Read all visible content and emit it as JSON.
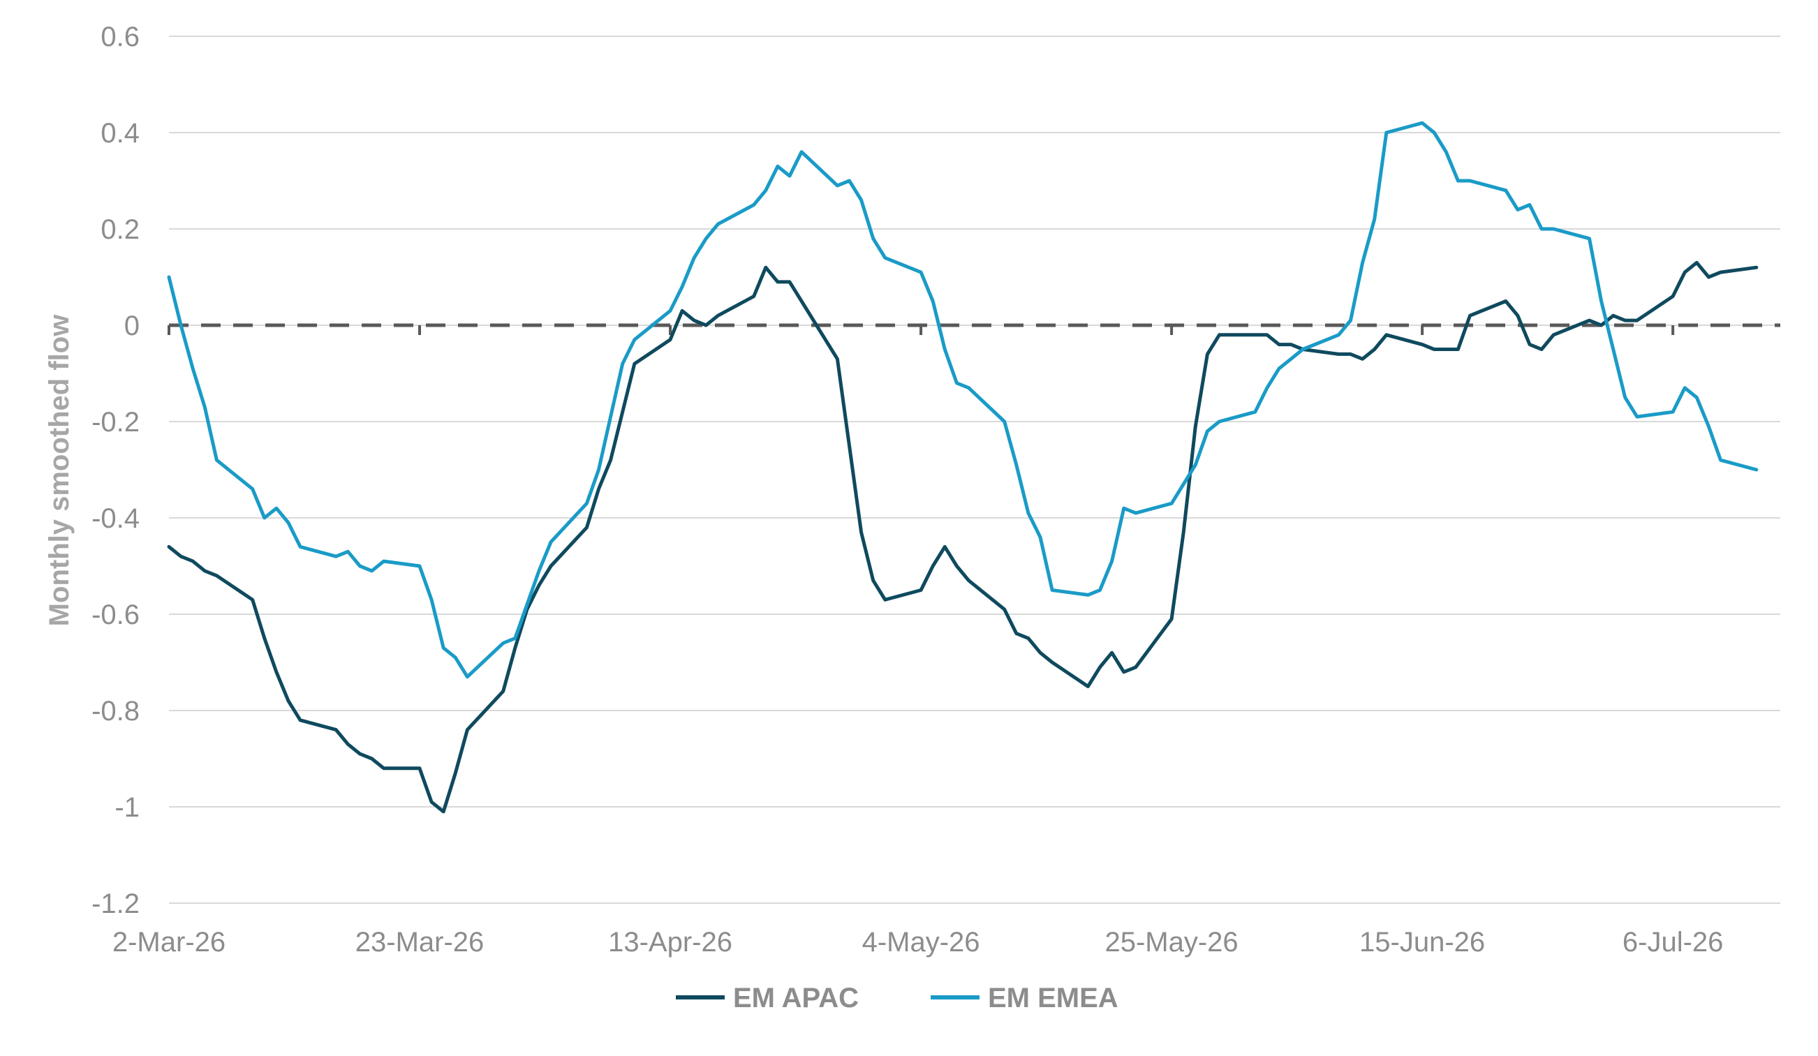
{
  "chart_data": {
    "type": "line",
    "title": "",
    "xlabel": "",
    "ylabel": "Monthly smoothed flow",
    "ylim": [
      -1.2,
      0.6
    ],
    "yticks": [
      0.6,
      0.4,
      0.2,
      0,
      -0.2,
      -0.4,
      -0.6,
      -0.8,
      -1,
      -1.2
    ],
    "ytick_labels": [
      "0.6",
      "0.4",
      "0.2",
      "0",
      "-0.2",
      "-0.4",
      "-0.6",
      "-0.8",
      "-1",
      "-1.2"
    ],
    "xlim": [
      "2026-03-02",
      "2026-07-15"
    ],
    "xticks": [
      "2026-03-02",
      "2026-03-23",
      "2026-04-13",
      "2026-05-04",
      "2026-05-25",
      "2026-06-15",
      "2026-07-06"
    ],
    "xtick_labels": [
      "2-Mar-26",
      "23-Mar-26",
      "13-Apr-26",
      "4-May-26",
      "25-May-26",
      "15-Jun-26",
      "6-Jul-26"
    ],
    "grid": true,
    "legend_position": "bottom",
    "reference_line": {
      "y": 0,
      "style": "dashed",
      "color": "#595959"
    },
    "series": [
      {
        "name": "EM APAC",
        "color": "#0f4a5e",
        "points": [
          [
            "2026-03-02",
            -0.46
          ],
          [
            "2026-03-03",
            -0.48
          ],
          [
            "2026-03-04",
            -0.49
          ],
          [
            "2026-03-05",
            -0.51
          ],
          [
            "2026-03-06",
            -0.52
          ],
          [
            "2026-03-09",
            -0.57
          ],
          [
            "2026-03-10",
            -0.65
          ],
          [
            "2026-03-11",
            -0.72
          ],
          [
            "2026-03-12",
            -0.78
          ],
          [
            "2026-03-13",
            -0.82
          ],
          [
            "2026-03-16",
            -0.84
          ],
          [
            "2026-03-17",
            -0.87
          ],
          [
            "2026-03-18",
            -0.89
          ],
          [
            "2026-03-19",
            -0.9
          ],
          [
            "2026-03-20",
            -0.92
          ],
          [
            "2026-03-23",
            -0.92
          ],
          [
            "2026-03-24",
            -0.99
          ],
          [
            "2026-03-25",
            -1.01
          ],
          [
            "2026-03-26",
            -0.93
          ],
          [
            "2026-03-27",
            -0.84
          ],
          [
            "2026-03-30",
            -0.76
          ],
          [
            "2026-03-31",
            -0.67
          ],
          [
            "2026-04-01",
            -0.59
          ],
          [
            "2026-04-02",
            -0.54
          ],
          [
            "2026-04-03",
            -0.5
          ],
          [
            "2026-04-06",
            -0.42
          ],
          [
            "2026-04-07",
            -0.34
          ],
          [
            "2026-04-08",
            -0.28
          ],
          [
            "2026-04-09",
            -0.18
          ],
          [
            "2026-04-10",
            -0.08
          ],
          [
            "2026-04-13",
            -0.03
          ],
          [
            "2026-04-14",
            0.03
          ],
          [
            "2026-04-15",
            0.01
          ],
          [
            "2026-04-16",
            0.0
          ],
          [
            "2026-04-17",
            0.02
          ],
          [
            "2026-04-20",
            0.06
          ],
          [
            "2026-04-21",
            0.12
          ],
          [
            "2026-04-22",
            0.09
          ],
          [
            "2026-04-23",
            0.09
          ],
          [
            "2026-04-24",
            0.05
          ],
          [
            "2026-04-27",
            -0.07
          ],
          [
            "2026-04-28",
            -0.25
          ],
          [
            "2026-04-29",
            -0.43
          ],
          [
            "2026-04-30",
            -0.53
          ],
          [
            "2026-05-01",
            -0.57
          ],
          [
            "2026-05-04",
            -0.55
          ],
          [
            "2026-05-05",
            -0.5
          ],
          [
            "2026-05-06",
            -0.46
          ],
          [
            "2026-05-07",
            -0.5
          ],
          [
            "2026-05-08",
            -0.53
          ],
          [
            "2026-05-11",
            -0.59
          ],
          [
            "2026-05-12",
            -0.64
          ],
          [
            "2026-05-13",
            -0.65
          ],
          [
            "2026-05-14",
            -0.68
          ],
          [
            "2026-05-15",
            -0.7
          ],
          [
            "2026-05-18",
            -0.75
          ],
          [
            "2026-05-19",
            -0.71
          ],
          [
            "2026-05-20",
            -0.68
          ],
          [
            "2026-05-21",
            -0.72
          ],
          [
            "2026-05-22",
            -0.71
          ],
          [
            "2026-05-25",
            -0.61
          ],
          [
            "2026-05-26",
            -0.43
          ],
          [
            "2026-05-27",
            -0.21
          ],
          [
            "2026-05-28",
            -0.06
          ],
          [
            "2026-05-29",
            -0.02
          ],
          [
            "2026-06-01",
            -0.02
          ],
          [
            "2026-06-02",
            -0.02
          ],
          [
            "2026-06-03",
            -0.04
          ],
          [
            "2026-06-04",
            -0.04
          ],
          [
            "2026-06-05",
            -0.05
          ],
          [
            "2026-06-08",
            -0.06
          ],
          [
            "2026-06-09",
            -0.06
          ],
          [
            "2026-06-10",
            -0.07
          ],
          [
            "2026-06-11",
            -0.05
          ],
          [
            "2026-06-12",
            -0.02
          ],
          [
            "2026-06-15",
            -0.04
          ],
          [
            "2026-06-16",
            -0.05
          ],
          [
            "2026-06-17",
            -0.05
          ],
          [
            "2026-06-18",
            -0.05
          ],
          [
            "2026-06-19",
            0.02
          ],
          [
            "2026-06-22",
            0.05
          ],
          [
            "2026-06-23",
            0.02
          ],
          [
            "2026-06-24",
            -0.04
          ],
          [
            "2026-06-25",
            -0.05
          ],
          [
            "2026-06-26",
            -0.02
          ],
          [
            "2026-06-29",
            0.01
          ],
          [
            "2026-06-30",
            0.0
          ],
          [
            "2026-07-01",
            0.02
          ],
          [
            "2026-07-02",
            0.01
          ],
          [
            "2026-07-03",
            0.01
          ],
          [
            "2026-07-06",
            0.06
          ],
          [
            "2026-07-07",
            0.11
          ],
          [
            "2026-07-08",
            0.13
          ],
          [
            "2026-07-09",
            0.1
          ],
          [
            "2026-07-10",
            0.11
          ],
          [
            "2026-07-13",
            0.12
          ]
        ]
      },
      {
        "name": "EM EMEA",
        "color": "#1a9bc7",
        "points": [
          [
            "2026-03-02",
            0.1
          ],
          [
            "2026-03-03",
            0.0
          ],
          [
            "2026-03-04",
            -0.09
          ],
          [
            "2026-03-05",
            -0.17
          ],
          [
            "2026-03-06",
            -0.28
          ],
          [
            "2026-03-09",
            -0.34
          ],
          [
            "2026-03-10",
            -0.4
          ],
          [
            "2026-03-11",
            -0.38
          ],
          [
            "2026-03-12",
            -0.41
          ],
          [
            "2026-03-13",
            -0.46
          ],
          [
            "2026-03-16",
            -0.48
          ],
          [
            "2026-03-17",
            -0.47
          ],
          [
            "2026-03-18",
            -0.5
          ],
          [
            "2026-03-19",
            -0.51
          ],
          [
            "2026-03-20",
            -0.49
          ],
          [
            "2026-03-23",
            -0.5
          ],
          [
            "2026-03-24",
            -0.57
          ],
          [
            "2026-03-25",
            -0.67
          ],
          [
            "2026-03-26",
            -0.69
          ],
          [
            "2026-03-27",
            -0.73
          ],
          [
            "2026-03-30",
            -0.66
          ],
          [
            "2026-03-31",
            -0.65
          ],
          [
            "2026-04-01",
            -0.58
          ],
          [
            "2026-04-02",
            -0.51
          ],
          [
            "2026-04-03",
            -0.45
          ],
          [
            "2026-04-06",
            -0.37
          ],
          [
            "2026-04-07",
            -0.3
          ],
          [
            "2026-04-08",
            -0.19
          ],
          [
            "2026-04-09",
            -0.08
          ],
          [
            "2026-04-10",
            -0.03
          ],
          [
            "2026-04-13",
            0.03
          ],
          [
            "2026-04-14",
            0.08
          ],
          [
            "2026-04-15",
            0.14
          ],
          [
            "2026-04-16",
            0.18
          ],
          [
            "2026-04-17",
            0.21
          ],
          [
            "2026-04-20",
            0.25
          ],
          [
            "2026-04-21",
            0.28
          ],
          [
            "2026-04-22",
            0.33
          ],
          [
            "2026-04-23",
            0.31
          ],
          [
            "2026-04-24",
            0.36
          ],
          [
            "2026-04-27",
            0.29
          ],
          [
            "2026-04-28",
            0.3
          ],
          [
            "2026-04-29",
            0.26
          ],
          [
            "2026-04-30",
            0.18
          ],
          [
            "2026-05-01",
            0.14
          ],
          [
            "2026-05-04",
            0.11
          ],
          [
            "2026-05-05",
            0.05
          ],
          [
            "2026-05-06",
            -0.05
          ],
          [
            "2026-05-07",
            -0.12
          ],
          [
            "2026-05-08",
            -0.13
          ],
          [
            "2026-05-11",
            -0.2
          ],
          [
            "2026-05-12",
            -0.29
          ],
          [
            "2026-05-13",
            -0.39
          ],
          [
            "2026-05-14",
            -0.44
          ],
          [
            "2026-05-15",
            -0.55
          ],
          [
            "2026-05-18",
            -0.56
          ],
          [
            "2026-05-19",
            -0.55
          ],
          [
            "2026-05-20",
            -0.49
          ],
          [
            "2026-05-21",
            -0.38
          ],
          [
            "2026-05-22",
            -0.39
          ],
          [
            "2026-05-25",
            -0.37
          ],
          [
            "2026-05-26",
            -0.33
          ],
          [
            "2026-05-27",
            -0.29
          ],
          [
            "2026-05-28",
            -0.22
          ],
          [
            "2026-05-29",
            -0.2
          ],
          [
            "2026-06-01",
            -0.18
          ],
          [
            "2026-06-02",
            -0.13
          ],
          [
            "2026-06-03",
            -0.09
          ],
          [
            "2026-06-04",
            -0.07
          ],
          [
            "2026-06-05",
            -0.05
          ],
          [
            "2026-06-08",
            -0.02
          ],
          [
            "2026-06-09",
            0.01
          ],
          [
            "2026-06-10",
            0.13
          ],
          [
            "2026-06-11",
            0.22
          ],
          [
            "2026-06-12",
            0.4
          ],
          [
            "2026-06-15",
            0.42
          ],
          [
            "2026-06-16",
            0.4
          ],
          [
            "2026-06-17",
            0.36
          ],
          [
            "2026-06-18",
            0.3
          ],
          [
            "2026-06-19",
            0.3
          ],
          [
            "2026-06-22",
            0.28
          ],
          [
            "2026-06-23",
            0.24
          ],
          [
            "2026-06-24",
            0.25
          ],
          [
            "2026-06-25",
            0.2
          ],
          [
            "2026-06-26",
            0.2
          ],
          [
            "2026-06-29",
            0.18
          ],
          [
            "2026-06-30",
            0.05
          ],
          [
            "2026-07-01",
            -0.05
          ],
          [
            "2026-07-02",
            -0.15
          ],
          [
            "2026-07-03",
            -0.19
          ],
          [
            "2026-07-06",
            -0.18
          ],
          [
            "2026-07-07",
            -0.13
          ],
          [
            "2026-07-08",
            -0.15
          ],
          [
            "2026-07-09",
            -0.21
          ],
          [
            "2026-07-10",
            -0.28
          ],
          [
            "2026-07-13",
            -0.3
          ]
        ]
      }
    ]
  }
}
